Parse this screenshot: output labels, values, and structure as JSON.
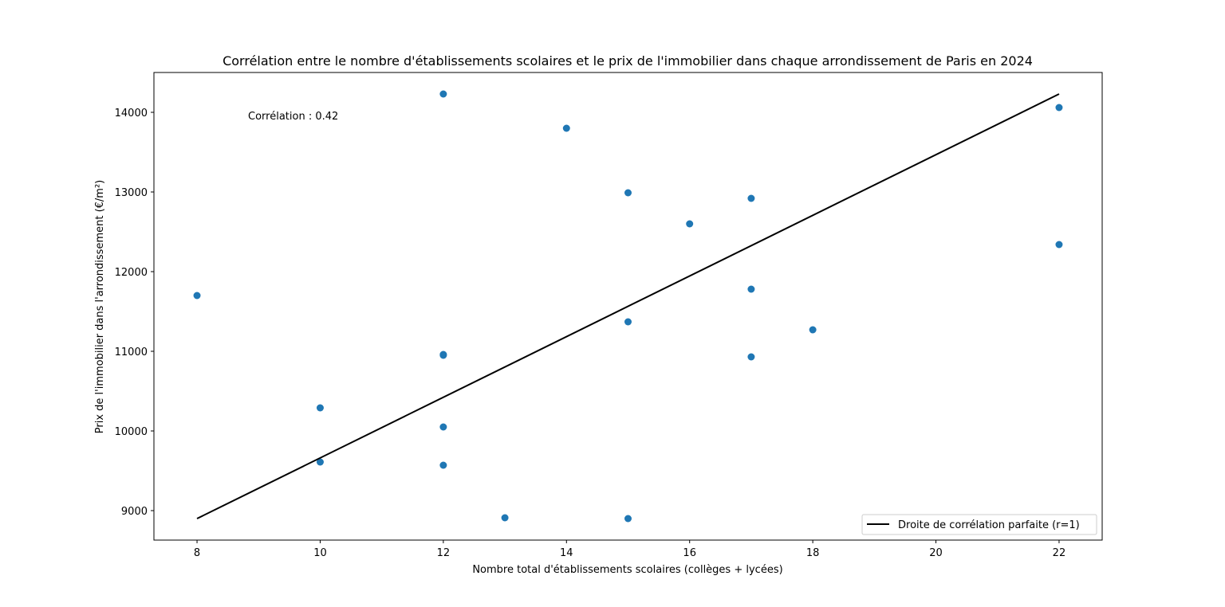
{
  "chart_data": {
    "type": "scatter",
    "title": "Corrélation entre le nombre d'établissements scolaires et le prix de l'immobilier dans chaque arrondissement de Paris en 2024",
    "xlabel": "Nombre total d'établissements scolaires (collèges + lycées)",
    "ylabel": "Prix de l'immobilier dans l'arrondissement (€/m²)",
    "xlim": [
      7.3,
      22.7
    ],
    "ylim": [
      8630,
      14500
    ],
    "xticks": [
      8,
      10,
      12,
      14,
      16,
      18,
      20,
      22
    ],
    "yticks": [
      9000,
      10000,
      11000,
      12000,
      13000,
      14000
    ],
    "annotation": "Corrélation : 0.42",
    "legend": {
      "label": "Droite de corrélation parfaite (r=1)",
      "placement": "lower-right"
    },
    "points": [
      {
        "x": 8,
        "y": 11700
      },
      {
        "x": 10,
        "y": 10290
      },
      {
        "x": 10,
        "y": 9610
      },
      {
        "x": 12,
        "y": 14230
      },
      {
        "x": 12,
        "y": 10960
      },
      {
        "x": 12,
        "y": 10950
      },
      {
        "x": 12,
        "y": 10050
      },
      {
        "x": 12,
        "y": 9570
      },
      {
        "x": 13,
        "y": 8910
      },
      {
        "x": 14,
        "y": 13800
      },
      {
        "x": 15,
        "y": 12990
      },
      {
        "x": 15,
        "y": 11370
      },
      {
        "x": 15,
        "y": 8900
      },
      {
        "x": 16,
        "y": 12600
      },
      {
        "x": 17,
        "y": 12920
      },
      {
        "x": 17,
        "y": 11780
      },
      {
        "x": 17,
        "y": 10930
      },
      {
        "x": 18,
        "y": 11270
      },
      {
        "x": 22,
        "y": 14060
      },
      {
        "x": 22,
        "y": 12340
      }
    ],
    "line": {
      "x": [
        8,
        22
      ],
      "y": [
        8900,
        14230
      ]
    },
    "colors": {
      "points": "#1f77b4",
      "line": "#000000"
    }
  }
}
